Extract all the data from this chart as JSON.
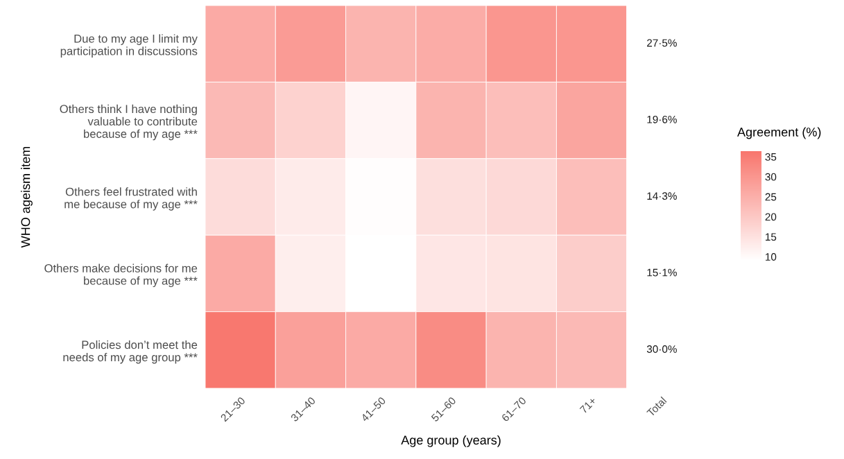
{
  "chart_data": {
    "type": "heatmap",
    "xlabel": "Age group (years)",
    "ylabel": "WHO ageism item",
    "clabel": "Agreement (%)",
    "categories": [
      "21–30",
      "31–40",
      "41–50",
      "51–60",
      "61–70",
      "71+",
      "Total"
    ],
    "y_categories": [
      "Due to my age I limit my\nparticipation in discussions",
      "Others think I have nothing\nvaluable to contribute\nbecause of my age ***",
      "Others feel frustrated with\nme because of my age ***",
      "Others make decisions for me\nbecause of my age ***",
      "Policies don’t meet the\nneeds of my age group ***"
    ],
    "cells": [
      [
        26,
        29,
        24,
        25.5,
        30,
        30,
        null
      ],
      [
        23,
        18,
        11,
        24,
        22,
        27,
        null
      ],
      [
        16,
        13,
        9.5,
        15.5,
        16.5,
        22,
        null
      ],
      [
        26,
        12.5,
        9,
        14,
        14.5,
        19,
        null
      ],
      [
        36,
        28,
        26,
        32,
        24,
        23,
        null
      ]
    ],
    "cell_labels": [
      [
        null,
        null,
        null,
        null,
        null,
        null,
        "27·5%"
      ],
      [
        null,
        null,
        null,
        null,
        null,
        null,
        "19·6%"
      ],
      [
        null,
        null,
        null,
        null,
        null,
        null,
        "14·3%"
      ],
      [
        null,
        null,
        null,
        null,
        null,
        null,
        "15·1%"
      ],
      [
        null,
        null,
        null,
        null,
        null,
        null,
        "30·0%"
      ]
    ],
    "colors": [
      "#ffffff",
      "#f8766d"
    ],
    "clim": [
      9,
      36.4
    ],
    "cticks": [
      10,
      15,
      20,
      25,
      30,
      35
    ]
  }
}
